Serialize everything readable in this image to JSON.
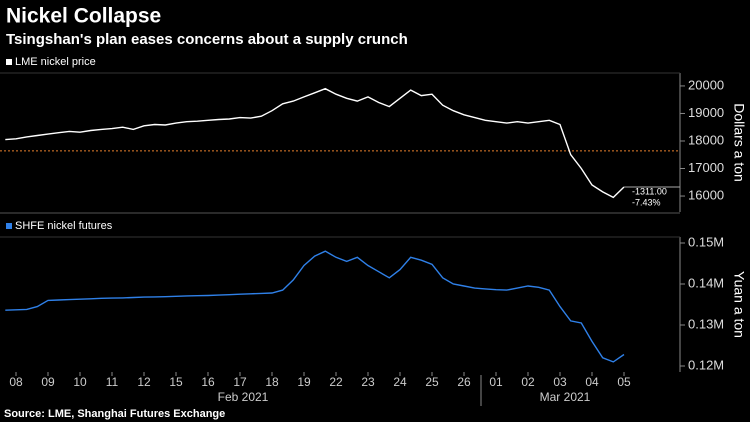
{
  "title": "Nickel Collapse",
  "subtitle": "Tsingshan's plan eases concerns about a supply crunch",
  "source": "Source: LME, Shanghai Futures Exchange",
  "chart_data": [
    {
      "type": "line",
      "y_label": "Dollars a ton",
      "series": [
        {
          "name": "LME nickel price",
          "color": "#ffffff",
          "values": [
            18050,
            18080,
            18150,
            18200,
            18250,
            18300,
            18350,
            18320,
            18380,
            18420,
            18450,
            18500,
            18420,
            18550,
            18600,
            18580,
            18650,
            18700,
            18720,
            18750,
            18780,
            18800,
            18850,
            18830,
            18900,
            19100,
            19350,
            19450,
            19600,
            19750,
            19900,
            19700,
            19550,
            19450,
            19600,
            19400,
            19250,
            19550,
            19850,
            19650,
            19700,
            19300,
            19100,
            18950,
            18850,
            18750,
            18700,
            18650,
            18700,
            18650,
            18700,
            18750,
            18600,
            17500,
            17000,
            16400,
            16150,
            15950,
            16330,
            null
          ]
        }
      ],
      "reference_line": 17641,
      "reference_color": "#e8802c",
      "annotations": [
        "-1311.00",
        "-7.43%"
      ],
      "ylim": [
        15420,
        20470
      ],
      "yticks": [
        16000,
        17000,
        18000,
        19000,
        20000
      ]
    },
    {
      "type": "line",
      "y_label": "Yuan a ton",
      "categories": [
        null,
        "08",
        null,
        null,
        "09",
        null,
        null,
        "10",
        null,
        null,
        "11",
        null,
        null,
        "12",
        null,
        null,
        "15",
        null,
        null,
        "16",
        null,
        null,
        "17",
        null,
        null,
        "18",
        null,
        null,
        "19",
        null,
        null,
        "22",
        null,
        null,
        "23",
        null,
        null,
        "24",
        null,
        null,
        "25",
        null,
        null,
        "26",
        null,
        null,
        "01",
        null,
        null,
        "02",
        null,
        null,
        "03",
        null,
        null,
        "04",
        null,
        null,
        "05",
        null
      ],
      "groups": [
        "Feb 2021",
        "Mar 2021"
      ],
      "series": [
        {
          "name": "SHFE nickel futures",
          "color": "#2f80e8",
          "values": [
            133600,
            133700,
            133800,
            134500,
            136000,
            136100,
            136200,
            136300,
            136400,
            136500,
            136550,
            136600,
            136700,
            136800,
            136850,
            136900,
            137000,
            137100,
            137150,
            137200,
            137300,
            137400,
            137500,
            137600,
            137700,
            137800,
            138500,
            141000,
            144500,
            146800,
            148000,
            146500,
            145500,
            146500,
            144500,
            143000,
            141500,
            143500,
            146500,
            145800,
            144800,
            141500,
            140000,
            139500,
            139000,
            138800,
            138600,
            138500,
            139000,
            139500,
            139200,
            138500,
            134500,
            131000,
            130500,
            126000,
            122000,
            121000,
            122800,
            null
          ]
        }
      ],
      "ylim": [
        118540,
        151460
      ],
      "yticks": [
        {
          "value": 120000,
          "label": "0.12M"
        },
        {
          "value": 130000,
          "label": "0.13M"
        },
        {
          "value": 140000,
          "label": "0.14M"
        },
        {
          "value": 150000,
          "label": "0.15M"
        }
      ]
    }
  ]
}
